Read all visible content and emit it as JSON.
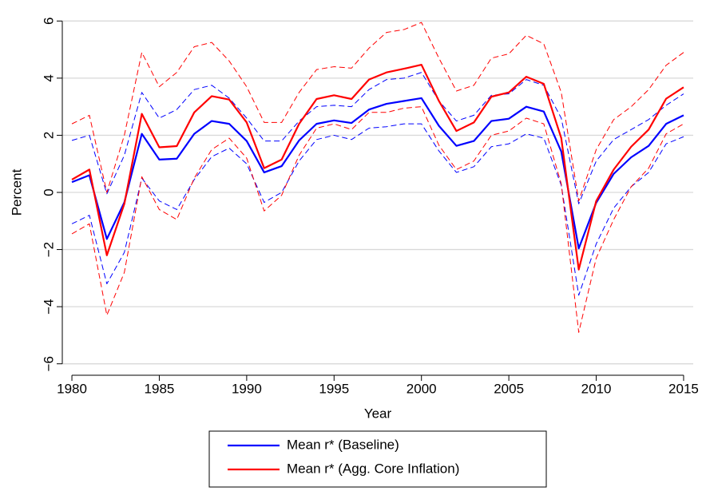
{
  "chart_data": {
    "type": "line",
    "xlabel": "Year",
    "ylabel": "Percent",
    "x": [
      1980,
      1981,
      1982,
      1983,
      1984,
      1985,
      1986,
      1987,
      1988,
      1989,
      1990,
      1991,
      1992,
      1993,
      1994,
      1995,
      1996,
      1997,
      1998,
      1999,
      2000,
      2001,
      2002,
      2003,
      2004,
      2005,
      2006,
      2007,
      2008,
      2009,
      2010,
      2011,
      2012,
      2013,
      2014,
      2015
    ],
    "xlim": [
      1979.45,
      2015.55
    ],
    "xticks": [
      1980,
      1985,
      1990,
      1995,
      2000,
      2005,
      2010,
      2015
    ],
    "ylim": [
      -6.4,
      6.4
    ],
    "yticks": [
      {
        "value": -6,
        "label": "−6"
      },
      {
        "value": -4,
        "label": "−4"
      },
      {
        "value": -2,
        "label": "−2"
      },
      0,
      2,
      4,
      6
    ],
    "grid": true,
    "legend": "bottom",
    "series": [
      {
        "color": "#0000ff",
        "style": "dashed",
        "values": [
          1.82,
          2.0,
          -0.05,
          1.3,
          3.5,
          2.6,
          2.9,
          3.6,
          3.75,
          3.3,
          2.6,
          1.8,
          1.8,
          2.5,
          3.0,
          3.05,
          3.0,
          3.6,
          3.95,
          4.0,
          4.2,
          3.2,
          2.5,
          2.7,
          3.4,
          3.45,
          3.95,
          3.75,
          2.6,
          -0.4,
          1.1,
          1.85,
          2.2,
          2.55,
          3.05,
          3.45
        ]
      },
      {
        "color": "#0000ff",
        "style": "dashed",
        "values": [
          -1.1,
          -0.8,
          -3.2,
          -2.1,
          0.5,
          -0.3,
          -0.6,
          0.45,
          1.25,
          1.55,
          1.0,
          -0.35,
          0.0,
          1.1,
          1.85,
          2.0,
          1.85,
          2.25,
          2.3,
          2.4,
          2.4,
          1.45,
          0.7,
          0.9,
          1.6,
          1.7,
          2.05,
          1.9,
          0.25,
          -3.6,
          -1.8,
          -0.55,
          0.2,
          0.7,
          1.7,
          1.95
        ]
      },
      {
        "color": "#ff0000",
        "style": "dashed",
        "values": [
          2.4,
          2.7,
          0.0,
          2.0,
          4.9,
          3.7,
          4.2,
          5.1,
          5.25,
          4.6,
          3.7,
          2.45,
          2.45,
          3.5,
          4.3,
          4.4,
          4.35,
          5.05,
          5.6,
          5.7,
          5.95,
          4.7,
          3.55,
          3.75,
          4.7,
          4.85,
          5.5,
          5.2,
          3.5,
          -0.3,
          1.5,
          2.55,
          3.0,
          3.6,
          4.45,
          4.9
        ]
      },
      {
        "color": "#ff0000",
        "style": "dashed",
        "values": [
          -1.45,
          -1.1,
          -4.3,
          -2.8,
          0.55,
          -0.6,
          -0.95,
          0.5,
          1.5,
          1.9,
          1.2,
          -0.65,
          -0.1,
          1.3,
          2.25,
          2.4,
          2.2,
          2.8,
          2.8,
          2.95,
          3.0,
          1.65,
          0.8,
          1.1,
          2.0,
          2.15,
          2.6,
          2.4,
          0.3,
          -4.9,
          -2.3,
          -0.95,
          0.2,
          0.85,
          2.05,
          2.4
        ]
      },
      {
        "name": "Mean r* (Baseline)",
        "color": "#0000ff",
        "style": "solid",
        "values": [
          0.36,
          0.6,
          -1.63,
          -0.35,
          2.05,
          1.15,
          1.18,
          2.05,
          2.5,
          2.4,
          1.8,
          0.7,
          0.92,
          1.82,
          2.4,
          2.52,
          2.43,
          2.9,
          3.1,
          3.2,
          3.3,
          2.33,
          1.63,
          1.8,
          2.5,
          2.58,
          3.0,
          2.83,
          1.43,
          -1.96,
          -0.36,
          0.65,
          1.23,
          1.63,
          2.4,
          2.7
        ]
      },
      {
        "name": "Mean r* (Agg. Core Inflation)",
        "color": "#ff0000",
        "style": "solid",
        "values": [
          0.45,
          0.8,
          -2.2,
          -0.4,
          2.75,
          1.58,
          1.62,
          2.8,
          3.37,
          3.25,
          2.45,
          0.85,
          1.15,
          2.4,
          3.27,
          3.4,
          3.27,
          3.95,
          4.2,
          4.33,
          4.47,
          3.2,
          2.15,
          2.45,
          3.35,
          3.5,
          4.05,
          3.8,
          1.9,
          -2.7,
          -0.3,
          0.8,
          1.6,
          2.2,
          3.28,
          3.68
        ]
      }
    ]
  }
}
